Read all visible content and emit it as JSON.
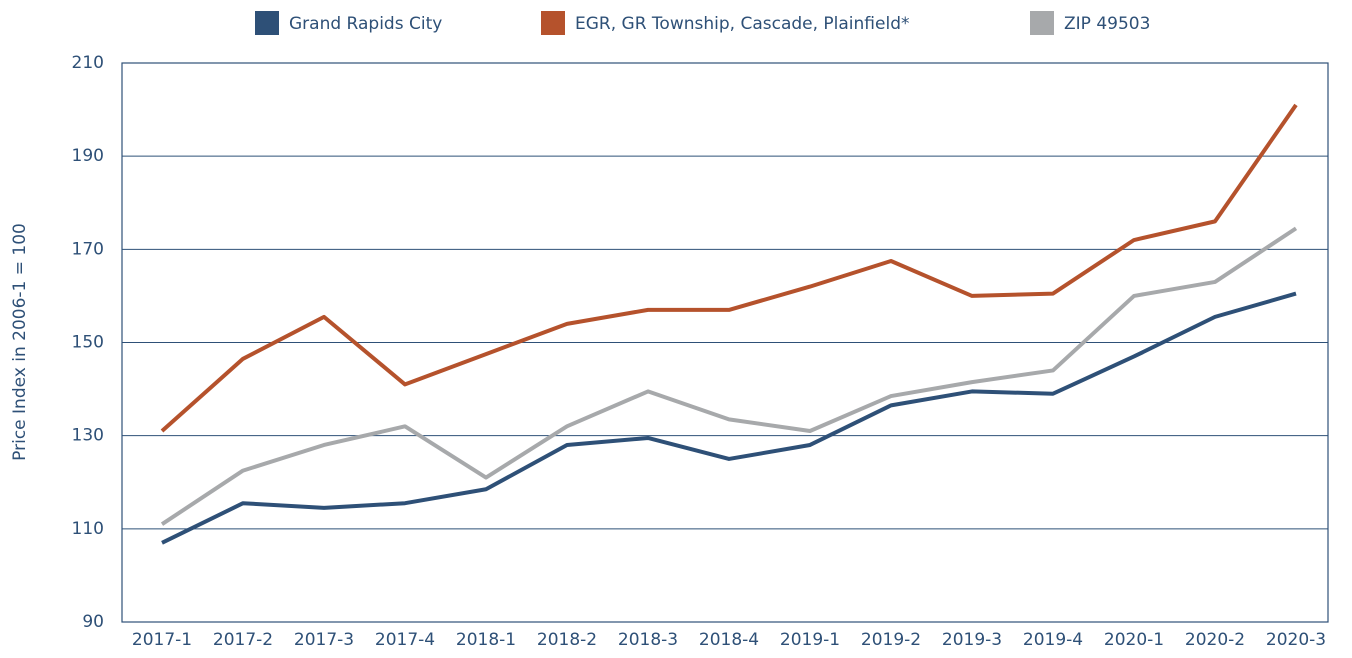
{
  "chart_data": {
    "type": "line",
    "ylabel": "Price Index in 2006-1 = 100",
    "categories": [
      "2017-1",
      "2017-2",
      "2017-3",
      "2017-4",
      "2018-1",
      "2018-2",
      "2018-3",
      "2018-4",
      "2019-1",
      "2019-2",
      "2019-3",
      "2019-4",
      "2020-1",
      "2020-2",
      "2020-3"
    ],
    "series": [
      {
        "name": "Grand Rapids City",
        "color": "#2e5077",
        "values": [
          107,
          115.5,
          114.5,
          115.5,
          118.5,
          128,
          129.5,
          125,
          128,
          136.5,
          139.5,
          139,
          147,
          155.5,
          160.5
        ]
      },
      {
        "name": "EGR, GR Township, Cascade, Plainfield*",
        "color": "#b5522c",
        "values": [
          131,
          146.5,
          155.5,
          141,
          147.5,
          154,
          157,
          157,
          162,
          167.5,
          160,
          160.5,
          172,
          176,
          201
        ]
      },
      {
        "name": "ZIP 49503",
        "color": "#a7a9ab",
        "values": [
          111,
          122.5,
          128,
          132,
          121,
          132,
          139.5,
          133.5,
          131,
          138.5,
          141.5,
          144,
          160,
          163,
          174.5
        ]
      }
    ],
    "ylim": [
      90,
      210
    ],
    "yticks": [
      90,
      110,
      130,
      150,
      170,
      190,
      210
    ],
    "grid": true
  }
}
